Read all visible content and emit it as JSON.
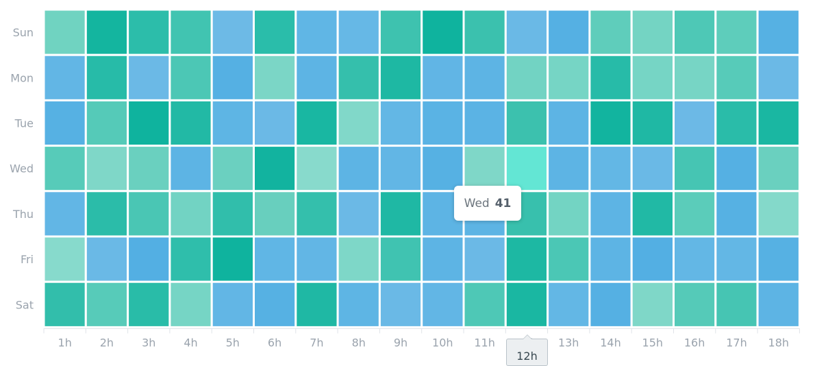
{
  "chart_data": {
    "type": "heatmap",
    "x_categories": [
      "1h",
      "2h",
      "3h",
      "4h",
      "5h",
      "6h",
      "7h",
      "8h",
      "9h",
      "10h",
      "11h",
      "12h",
      "13h",
      "14h",
      "15h",
      "16h",
      "17h",
      "18h"
    ],
    "y_categories": [
      "Sun",
      "Mon",
      "Tue",
      "Wed",
      "Thu",
      "Fri",
      "Sat"
    ],
    "cell_colors": [
      [
        "#70d3c1",
        "#14b59f",
        "#2cbdaa",
        "#41c4b1",
        "#6dbae6",
        "#2abdaa",
        "#60b6e5",
        "#66b8e6",
        "#3ec2af",
        "#0fb39e",
        "#3bc1ae",
        "#6ab9e6",
        "#55b0e3",
        "#5fcdbb",
        "#74d4c3",
        "#4ec8b6",
        "#5ecdbb",
        "#56b1e3"
      ],
      [
        "#62b6e5",
        "#27bba8",
        "#6bb9e6",
        "#4cc7b5",
        "#55b0e3",
        "#7bd6c6",
        "#5db4e4",
        "#35bfac",
        "#1eb8a3",
        "#61b5e5",
        "#5db4e4",
        "#72d3c3",
        "#76d5c5",
        "#27bba8",
        "#76d5c5",
        "#77d5c5",
        "#57cbb9",
        "#6bb9e6"
      ],
      [
        "#56b1e3",
        "#55cab8",
        "#0fb39e",
        "#22b9a5",
        "#5eb5e4",
        "#6bb9e6",
        "#19b7a2",
        "#81d8c9",
        "#63b7e5",
        "#5ab3e4",
        "#5bb3e4",
        "#3cc1ae",
        "#5db4e4",
        "#12b49f",
        "#1fb8a4",
        "#6cb9e6",
        "#2abca9",
        "#1ab7a2"
      ],
      [
        "#57cbb9",
        "#7fd7c8",
        "#6ad0bf",
        "#5db4e4",
        "#6bd0c0",
        "#12b39f",
        "#88dacc",
        "#5db4e4",
        "#62b6e5",
        "#56b1e3",
        "#7fd7c8",
        "#63e6d4",
        "#5db4e4",
        "#63b7e5",
        "#6ab9e6",
        "#46c5b3",
        "#55b0e3",
        "#6ad0bf"
      ],
      [
        "#62b6e5",
        "#2bbca9",
        "#4ac6b4",
        "#72d3c3",
        "#31beab",
        "#68cfbe",
        "#34bfac",
        "#6bb9e6",
        "#1fb8a4",
        "#5db4e4",
        "#5db4e4",
        "#38c0ad",
        "#73d4c3",
        "#5db4e4",
        "#21b9a5",
        "#5bccba",
        "#56b1e3",
        "#84d9ca"
      ],
      [
        "#87dacc",
        "#6ab9e6",
        "#53afe3",
        "#2fbeab",
        "#0fb39e",
        "#60b6e5",
        "#62b6e5",
        "#7ed7c8",
        "#40c3b1",
        "#5db4e4",
        "#6bb9e6",
        "#1db8a3",
        "#4bc7b5",
        "#5db4e4",
        "#53afe3",
        "#63b7e5",
        "#63b7e5",
        "#56b1e3"
      ],
      [
        "#32beab",
        "#57cbb9",
        "#29bca8",
        "#76d5c5",
        "#62b6e5",
        "#56b1e3",
        "#1fb8a4",
        "#5eb5e4",
        "#6ab9e6",
        "#62b6e5",
        "#4ec8b6",
        "#1ab7a2",
        "#63b7e5",
        "#55b0e3",
        "#7fd7c8",
        "#55cab8",
        "#46c5b3",
        "#5db4e4"
      ]
    ],
    "tooltip": {
      "label": "Wed",
      "value": 41
    },
    "crosshair_label": "12h"
  }
}
